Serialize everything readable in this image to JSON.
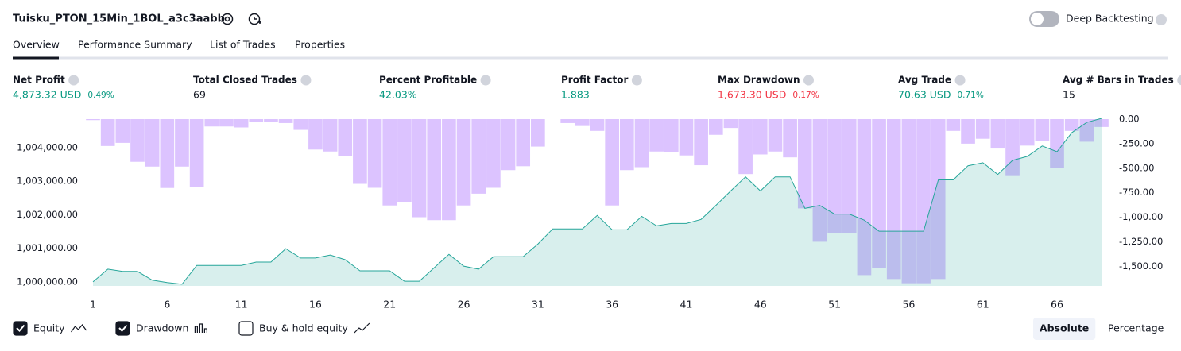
{
  "header": {
    "title": "Tuisku_PTON_15Min_1BOL_a3c3aabb",
    "toggle_label": "Deep Backtesting"
  },
  "tabs": {
    "items": [
      "Overview",
      "Performance Summary",
      "List of Trades",
      "Properties"
    ],
    "active": 0
  },
  "metrics": [
    {
      "label": "Net Profit",
      "value": "4,873.32 USD",
      "pct": "0.49%",
      "color": "#089981"
    },
    {
      "label": "Total Closed Trades",
      "value": "69",
      "color": "#131722"
    },
    {
      "label": "Percent Profitable",
      "value": "42.03%",
      "color": "#089981"
    },
    {
      "label": "Profit Factor",
      "value": "1.883",
      "color": "#089981"
    },
    {
      "label": "Max Drawdown",
      "value": "1,673.30 USD",
      "pct": "0.17%",
      "color": "#f23645"
    },
    {
      "label": "Avg Trade",
      "value": "70.63 USD",
      "pct": "0.71%",
      "color": "#089981"
    },
    {
      "label": "Avg # Bars in Trades",
      "value": "15",
      "color": "#131722"
    }
  ],
  "chart": {
    "xlim": [
      1,
      69
    ],
    "xticks": [
      1,
      6,
      11,
      16,
      21,
      26,
      31,
      36,
      41,
      46,
      51,
      56,
      61,
      66
    ],
    "ylim": [
      999880,
      1004850
    ],
    "yticks": [
      {
        "value": 1000000,
        "label": "1,000,000.00"
      },
      {
        "value": 1001000,
        "label": "1,001,000.00"
      },
      {
        "value": 1002000,
        "label": "1,002,000.00"
      },
      {
        "value": 1003000,
        "label": "1,003,000.00"
      },
      {
        "value": 1004000,
        "label": "1,004,000.00"
      }
    ],
    "y2lim": [
      -1700,
      0
    ],
    "y2ticks": [
      {
        "value": 0,
        "label": "0.00"
      },
      {
        "value": -250,
        "label": "-250.00"
      },
      {
        "value": -500,
        "label": "-500.00"
      },
      {
        "value": -750,
        "label": "-750.00"
      },
      {
        "value": -1000,
        "label": "-1,000.00"
      },
      {
        "value": -1250,
        "label": "-1,250.00"
      },
      {
        "value": -1500,
        "label": "-1,500.00"
      }
    ],
    "equity": {
      "color": "#26a69a",
      "values": [
        1000000,
        1000380,
        1000310,
        1000310,
        1000050,
        999980,
        999930,
        1000490,
        1000490,
        1000490,
        1000490,
        1000590,
        1000590,
        1000990,
        1000710,
        1000710,
        1000800,
        1000660,
        1000330,
        1000330,
        1000330,
        1000020,
        1000020,
        1000420,
        1000820,
        1000470,
        1000380,
        1000750,
        1000750,
        1000750,
        1001130,
        1001580,
        1001580,
        1001580,
        1001980,
        1001550,
        1001550,
        1001950,
        1001670,
        1001740,
        1001740,
        1001860,
        1002280,
        1002710,
        1003130,
        1002710,
        1003130,
        1003130,
        1002190,
        1002280,
        1002020,
        1002020,
        1001840,
        1001510,
        1001510,
        1001510,
        1001510,
        1003040,
        1003040,
        1003460,
        1003550,
        1003200,
        1003620,
        1003740,
        1004050,
        1003880,
        1004450,
        1004750,
        1004873
      ]
    },
    "drawdown": {
      "color": "#dcc3ff",
      "values": [
        -10,
        -274,
        -242,
        -435,
        -484,
        -702,
        -484,
        -694,
        -75,
        -75,
        -85,
        -30,
        -30,
        -40,
        -110,
        -310,
        -330,
        -380,
        -660,
        -700,
        -880,
        -850,
        -1000,
        -1030,
        -1030,
        -880,
        -760,
        -700,
        -520,
        -480,
        -280,
        0,
        -40,
        -70,
        -120,
        -880,
        -520,
        -490,
        -330,
        -340,
        -370,
        -470,
        -160,
        -90,
        -560,
        -360,
        -330,
        -390,
        -910,
        -1250,
        -1160,
        -1160,
        -1590,
        -1520,
        -1630,
        -1673,
        -1673,
        -1630,
        -120,
        -250,
        -200,
        -300,
        -580,
        -270,
        -220,
        -500,
        -120,
        -230,
        -80
      ]
    }
  },
  "legend": [
    {
      "label": "Equity",
      "checked": true
    },
    {
      "label": "Drawdown",
      "checked": true
    },
    {
      "label": "Buy & hold equity",
      "checked": false
    }
  ],
  "modes": {
    "items": [
      "Absolute",
      "Percentage"
    ],
    "active": 0
  }
}
